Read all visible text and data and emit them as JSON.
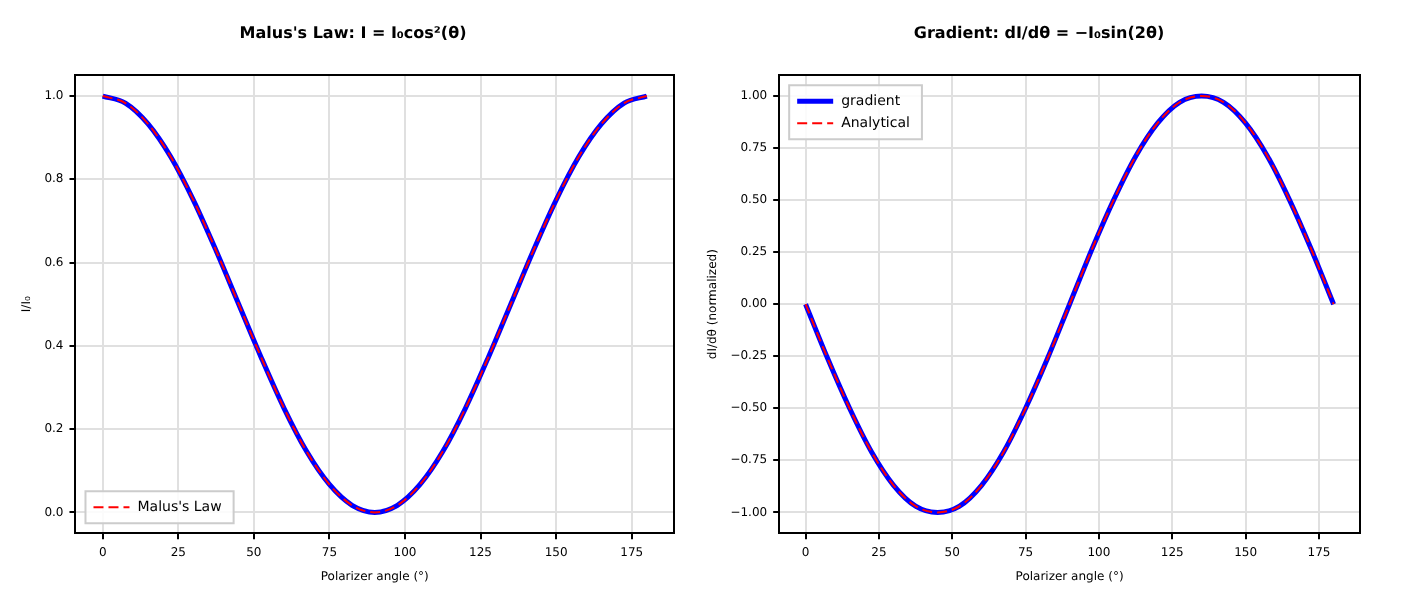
{
  "chart_data": [
    {
      "type": "line",
      "title": "Malus's Law: I = I₀cos²(θ)",
      "xlabel": "Polarizer angle (°)",
      "ylabel": "I/I₀",
      "x": [
        0,
        7.5,
        15,
        22.5,
        30,
        37.5,
        45,
        52.5,
        60,
        67.5,
        75,
        82.5,
        90,
        97.5,
        105,
        112.5,
        120,
        127.5,
        135,
        142.5,
        150,
        157.5,
        165,
        172.5,
        180
      ],
      "series": [
        {
          "color": "#0000ff",
          "line_style": "solid",
          "values": [
            1,
            0.983,
            0.933,
            0.854,
            0.75,
            0.629,
            0.5,
            0.371,
            0.25,
            0.146,
            0.067,
            0.017,
            0,
            0.017,
            0.067,
            0.146,
            0.25,
            0.371,
            0.5,
            0.629,
            0.75,
            0.854,
            0.933,
            0.983,
            1
          ]
        },
        {
          "name": "Malus's Law",
          "color": "#ff0000",
          "line_style": "dashed",
          "values": [
            1,
            0.983,
            0.933,
            0.854,
            0.75,
            0.629,
            0.5,
            0.371,
            0.25,
            0.146,
            0.067,
            0.017,
            0,
            0.017,
            0.067,
            0.146,
            0.25,
            0.371,
            0.5,
            0.629,
            0.75,
            0.854,
            0.933,
            0.983,
            1
          ]
        }
      ],
      "xlim": [
        -9,
        189
      ],
      "xticks": [
        0,
        25,
        50,
        75,
        100,
        125,
        150,
        175
      ],
      "ylim": [
        -0.05,
        1.05
      ],
      "yticks": [
        {
          "value": 0,
          "label": "0.0"
        },
        0.2,
        0.4,
        0.6,
        0.8,
        {
          "value": 1,
          "label": "1.0"
        }
      ],
      "grid": true,
      "legend": "bottom left",
      "marker": "none"
    },
    {
      "type": "line",
      "title": "Gradient: dI/dθ = −I₀sin(2θ)",
      "xlabel": "Polarizer angle (°)",
      "ylabel": "dI/dθ (normalized)",
      "x": [
        0,
        7.5,
        15,
        22.5,
        30,
        37.5,
        45,
        52.5,
        60,
        67.5,
        75,
        82.5,
        90,
        97.5,
        105,
        112.5,
        120,
        127.5,
        135,
        142.5,
        150,
        157.5,
        165,
        172.5,
        180
      ],
      "series": [
        {
          "name": "gradient",
          "color": "#0000ff",
          "line_style": "solid",
          "values": [
            0,
            -0.26,
            -0.5,
            -0.71,
            -0.87,
            -0.97,
            -1,
            -0.97,
            -0.87,
            -0.71,
            -0.5,
            -0.26,
            0,
            0.26,
            0.5,
            0.71,
            0.87,
            0.97,
            1,
            0.97,
            0.87,
            0.71,
            0.5,
            0.26,
            0
          ]
        },
        {
          "name": "Analytical",
          "color": "#ff0000",
          "line_style": "dashed",
          "values": [
            0,
            -0.26,
            -0.5,
            -0.71,
            -0.87,
            -0.97,
            -1,
            -0.97,
            -0.87,
            -0.71,
            -0.5,
            -0.26,
            0,
            0.26,
            0.5,
            0.71,
            0.87,
            0.97,
            1,
            0.97,
            0.87,
            0.71,
            0.5,
            0.26,
            0
          ]
        }
      ],
      "xlim": [
        -9,
        189
      ],
      "xticks": [
        0,
        25,
        50,
        75,
        100,
        125,
        150,
        175
      ],
      "ylim": [
        -1.1,
        1.1
      ],
      "yticks": [
        {
          "value": -1,
          "label": "−1.00"
        },
        {
          "value": -0.75,
          "label": "−0.75"
        },
        {
          "value": -0.5,
          "label": "−0.50"
        },
        {
          "value": -0.25,
          "label": "−0.25"
        },
        {
          "value": 0,
          "label": "0.00"
        },
        {
          "value": 0.25,
          "label": "0.25"
        },
        {
          "value": 0.5,
          "label": "0.50"
        },
        {
          "value": 0.75,
          "label": "0.75"
        },
        {
          "value": 1,
          "label": "1.00"
        }
      ],
      "grid": true,
      "legend": "top left",
      "marker": "none"
    }
  ]
}
